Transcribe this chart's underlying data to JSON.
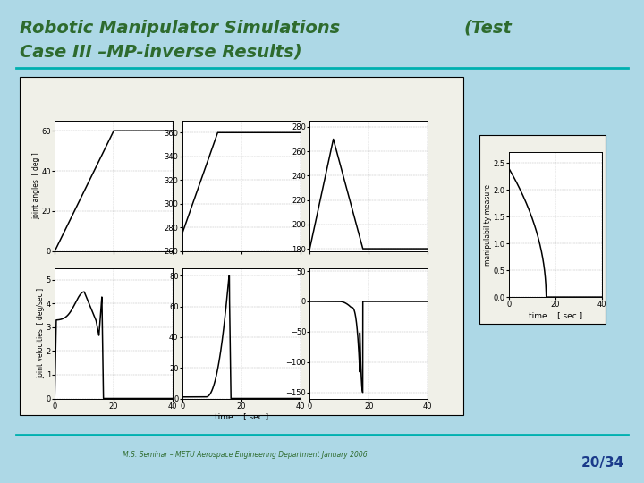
{
  "bg_color": "#add8e6",
  "title_line1": "Robotic Manipulator Simulations",
  "title_line2": "Case III –MP-inverse Results)",
  "title_suffix": "(Test",
  "title_color": "#2e6b2e",
  "footer_text": "M.S. Seminar – METU Aerospace Engineering Department January 2006",
  "footer_color": "#2e6b2e",
  "page_num": "20/34",
  "page_color": "#1a3a8a",
  "separator_color": "#00b0b0",
  "panel_bg": "#f0f0e8",
  "ax_bg": "#ffffff",
  "curve_color": "#000000",
  "grid_color": "#888888",
  "title_fontsize": 14,
  "tick_fontsize": 6,
  "label_fontsize": 5.5,
  "xlabel_fontsize": 6.5
}
